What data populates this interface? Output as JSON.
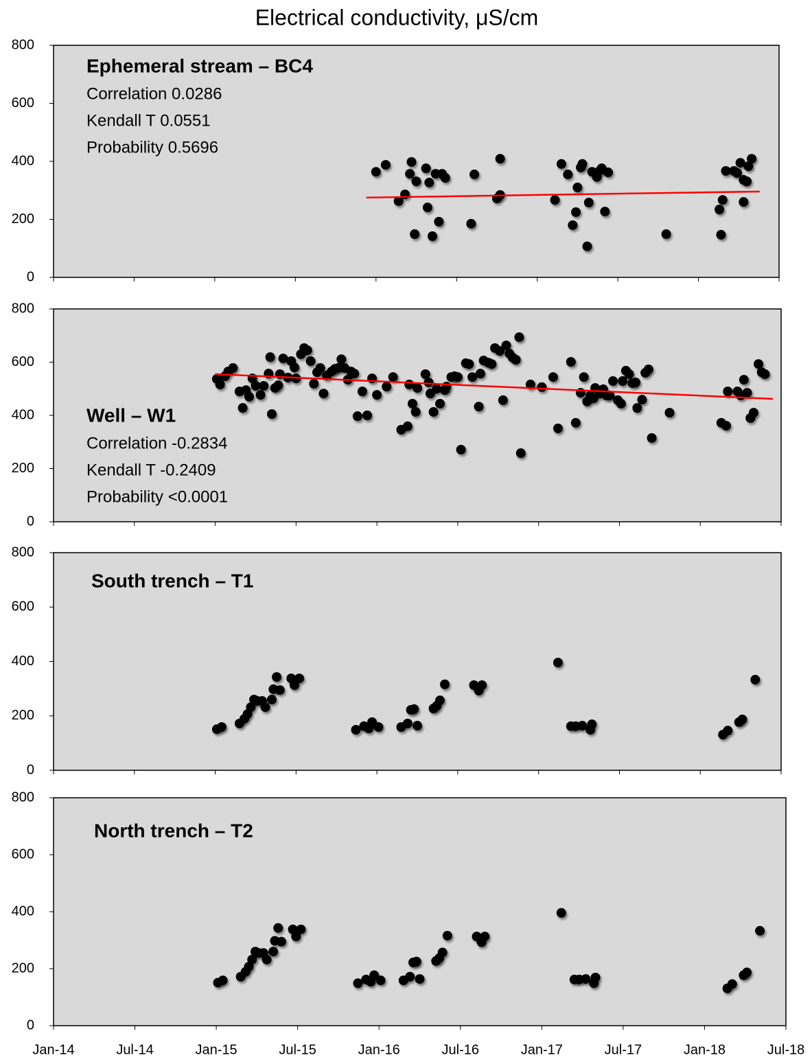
{
  "title": "Electrical conductivity, μS/cm",
  "chart_data": [
    {
      "type": "scatter",
      "title": "Ephemeral stream – BC4",
      "annotations": [
        "Correlation 0.0286",
        "Kendall T 0.0551",
        "Probability 0.5696"
      ],
      "color": "#000000",
      "ylim": [
        0,
        800
      ],
      "yticks": [
        0,
        200,
        400,
        600,
        800
      ],
      "x": [
        2016.0,
        2016.06,
        2016.14,
        2016.18,
        2016.21,
        2016.22,
        2016.25,
        2016.24,
        2016.31,
        2016.32,
        2016.33,
        2016.35,
        2016.37,
        2016.39,
        2016.41,
        2016.43,
        2016.59,
        2016.61,
        2016.75,
        2016.77,
        2016.77,
        2017.11,
        2017.15,
        2017.19,
        2017.22,
        2017.24,
        2017.25,
        2017.27,
        2017.28,
        2017.32,
        2017.31,
        2017.34,
        2017.37,
        2017.39,
        2017.4,
        2017.42,
        2017.44,
        2017.8,
        2018.13,
        2018.14,
        2018.15,
        2018.17,
        2018.22,
        2018.24,
        2018.26,
        2018.28,
        2018.28,
        2018.3,
        2018.31,
        2018.33
      ],
      "values": [
        364,
        388,
        263,
        286,
        357,
        398,
        331,
        149,
        376,
        241,
        327,
        142,
        357,
        192,
        357,
        343,
        185,
        355,
        272,
        284,
        409,
        267,
        391,
        355,
        180,
        225,
        310,
        379,
        391,
        258,
        107,
        364,
        346,
        369,
        376,
        227,
        362,
        149,
        234,
        147,
        267,
        367,
        367,
        360,
        395,
        260,
        336,
        331,
        383,
        409
      ],
      "trend": {
        "x": [
          2015.94,
          2018.38
        ],
        "y": [
          275,
          296
        ],
        "color": "#ff0000"
      }
    },
    {
      "type": "scatter",
      "title": "Well – W1",
      "annotations": [
        "Correlation -0.2834",
        "Kendall T -0.2409",
        "Probability <0.0001"
      ],
      "color": "#000000",
      "ylim": [
        0,
        800
      ],
      "yticks": [
        0,
        200,
        400,
        600,
        800
      ],
      "x": [
        2015.01,
        2015.03,
        2015.06,
        2015.08,
        2015.11,
        2015.15,
        2015.17,
        2015.19,
        2015.21,
        2015.23,
        2015.25,
        2015.28,
        2015.3,
        2015.33,
        2015.34,
        2015.35,
        2015.37,
        2015.39,
        2015.4,
        2015.42,
        2015.45,
        2015.47,
        2015.49,
        2015.5,
        2015.53,
        2015.55,
        2015.57,
        2015.59,
        2015.61,
        2015.63,
        2015.65,
        2015.67,
        2015.69,
        2015.72,
        2015.74,
        2015.76,
        2015.78,
        2015.8,
        2015.82,
        2015.84,
        2015.86,
        2015.88,
        2015.91,
        2015.94,
        2015.97,
        2016.0,
        2016.06,
        2016.1,
        2016.15,
        2016.19,
        2016.2,
        2016.22,
        2016.24,
        2016.25,
        2016.3,
        2016.32,
        2016.33,
        2016.35,
        2016.37,
        2016.39,
        2016.42,
        2016.43,
        2016.46,
        2016.48,
        2016.5,
        2016.52,
        2016.55,
        2016.57,
        2016.59,
        2016.63,
        2016.64,
        2016.66,
        2016.69,
        2016.71,
        2016.73,
        2016.76,
        2016.78,
        2016.8,
        2016.82,
        2016.84,
        2016.86,
        2016.88,
        2016.89,
        2016.95,
        2017.02,
        2017.09,
        2017.12,
        2017.2,
        2017.23,
        2017.26,
        2017.28,
        2017.3,
        2017.32,
        2017.34,
        2017.35,
        2017.38,
        2017.4,
        2017.42,
        2017.44,
        2017.46,
        2017.49,
        2017.51,
        2017.52,
        2017.54,
        2017.56,
        2017.58,
        2017.6,
        2017.61,
        2017.64,
        2017.66,
        2017.68,
        2017.7,
        2017.81,
        2018.13,
        2018.16,
        2018.17,
        2018.23,
        2018.25,
        2018.27,
        2018.29,
        2018.31,
        2018.33,
        2018.36,
        2018.38,
        2018.4
      ],
      "values": [
        537,
        516,
        547,
        565,
        578,
        490,
        428,
        495,
        470,
        539,
        511,
        477,
        511,
        557,
        619,
        405,
        503,
        513,
        555,
        614,
        542,
        604,
        580,
        539,
        630,
        653,
        645,
        604,
        519,
        562,
        578,
        482,
        550,
        565,
        575,
        578,
        611,
        578,
        534,
        565,
        557,
        397,
        490,
        400,
        539,
        477,
        508,
        544,
        346,
        359,
        516,
        444,
        413,
        503,
        555,
        524,
        482,
        413,
        500,
        444,
        495,
        508,
        544,
        547,
        544,
        271,
        596,
        593,
        544,
        433,
        557,
        606,
        598,
        593,
        653,
        642,
        457,
        663,
        632,
        617,
        609,
        694,
        258,
        516,
        506,
        544,
        351,
        601,
        372,
        485,
        544,
        452,
        475,
        464,
        503,
        482,
        498,
        475,
        475,
        529,
        457,
        444,
        529,
        568,
        555,
        521,
        524,
        428,
        459,
        560,
        573,
        315,
        410,
        372,
        361,
        490,
        490,
        475,
        534,
        485,
        390,
        410,
        593,
        562,
        555
      ],
      "trend": {
        "x": [
          2015.0,
          2018.45
        ],
        "y": [
          555,
          462
        ],
        "color": "#ff0000"
      }
    },
    {
      "type": "scatter",
      "title": "South trench – T1",
      "color": "#000000",
      "ylim": [
        0,
        800
      ],
      "yticks": [
        0,
        200,
        400,
        600,
        800
      ],
      "x": [
        2015.01,
        2015.04,
        2015.15,
        2015.18,
        2015.2,
        2015.22,
        2015.24,
        2015.26,
        2015.29,
        2015.31,
        2015.35,
        2015.36,
        2015.38,
        2015.4,
        2015.47,
        2015.49,
        2015.52,
        2015.87,
        2015.92,
        2015.95,
        2015.97,
        2016.01,
        2016.15,
        2016.19,
        2016.21,
        2016.23,
        2016.25,
        2016.35,
        2016.37,
        2016.39,
        2016.42,
        2016.6,
        2016.63,
        2016.65,
        2017.12,
        2017.2,
        2017.23,
        2017.27,
        2017.33,
        2017.32,
        2018.14,
        2018.17,
        2018.24,
        2018.26,
        2018.34
      ],
      "values": [
        151,
        159,
        172,
        189,
        207,
        232,
        260,
        255,
        255,
        232,
        260,
        298,
        343,
        295,
        338,
        313,
        338,
        149,
        162,
        154,
        177,
        159,
        159,
        172,
        222,
        225,
        164,
        227,
        237,
        257,
        316,
        313,
        293,
        313,
        396,
        162,
        162,
        164,
        169,
        149,
        131,
        146,
        177,
        187,
        333
      ]
    },
    {
      "type": "scatter",
      "title": "North trench – T2",
      "color": "#000000",
      "ylim": [
        0,
        800
      ],
      "yticks": [
        0,
        200,
        400,
        600,
        800
      ],
      "xlim": [
        2014,
        2018.5
      ],
      "xticks": [
        {
          "value": 2014,
          "label": "Jan-14"
        },
        {
          "value": 2014.5,
          "label": "Jul-14"
        },
        {
          "value": 2015,
          "label": "Jan-15"
        },
        {
          "value": 2015.5,
          "label": "Jul-15"
        },
        {
          "value": 2016,
          "label": "Jan-16"
        },
        {
          "value": 2016.5,
          "label": "Jul-16"
        },
        {
          "value": 2017,
          "label": "Jan-17"
        },
        {
          "value": 2017.5,
          "label": "Jul-17"
        },
        {
          "value": 2018,
          "label": "Jan-18"
        },
        {
          "value": 2018.5,
          "label": "Jul-18"
        }
      ],
      "x": [
        2015.01,
        2015.04,
        2015.15,
        2015.18,
        2015.2,
        2015.22,
        2015.24,
        2015.26,
        2015.29,
        2015.31,
        2015.35,
        2015.36,
        2015.38,
        2015.4,
        2015.47,
        2015.49,
        2015.52,
        2015.87,
        2015.92,
        2015.95,
        2015.97,
        2016.01,
        2016.15,
        2016.19,
        2016.21,
        2016.23,
        2016.25,
        2016.35,
        2016.37,
        2016.39,
        2016.42,
        2016.6,
        2016.63,
        2016.65,
        2017.12,
        2017.2,
        2017.23,
        2017.27,
        2017.33,
        2017.32,
        2018.14,
        2018.17,
        2018.24,
        2018.26,
        2018.34
      ],
      "values": [
        151,
        159,
        172,
        189,
        207,
        232,
        260,
        255,
        255,
        232,
        260,
        298,
        343,
        295,
        338,
        313,
        338,
        149,
        162,
        154,
        177,
        159,
        159,
        172,
        222,
        225,
        164,
        227,
        237,
        257,
        316,
        313,
        293,
        313,
        396,
        162,
        162,
        164,
        169,
        149,
        131,
        146,
        177,
        187,
        333
      ]
    }
  ]
}
